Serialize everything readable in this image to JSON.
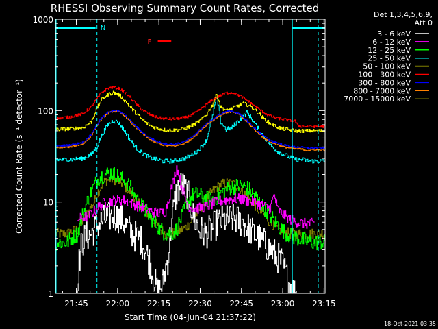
{
  "chart_data": {
    "type": "line",
    "title": "RHESSI Observing Summary Count Rates, Corrected",
    "ylabel": "Corrected Count Rate (s⁻¹ detector⁻¹)",
    "xlabel": "Start Time (04-Jun-04 21:37:22)",
    "x_unit": "minutes after 21:37:22",
    "xlim": [
      0,
      98
    ],
    "ylim": [
      1,
      1000
    ],
    "yscale": "log",
    "x_ticks": [
      {
        "t": 7.6,
        "label": "21:45"
      },
      {
        "t": 22.6,
        "label": "22:00"
      },
      {
        "t": 37.6,
        "label": "22:15"
      },
      {
        "t": 52.6,
        "label": "22:30"
      },
      {
        "t": 67.6,
        "label": "22:45"
      },
      {
        "t": 82.6,
        "label": "23:00"
      },
      {
        "t": 97.6,
        "label": "23:15"
      }
    ],
    "y_ticks": [
      {
        "v": 1,
        "label": "1"
      },
      {
        "v": 10,
        "label": "10"
      },
      {
        "v": 100,
        "label": "100"
      },
      {
        "v": 1000,
        "label": "1000"
      }
    ],
    "detector_info": [
      "Det 1,3,4,5,6,9,",
      "Att 0"
    ],
    "annotations": {
      "night_label": "N",
      "night_intervals": [
        [
          0,
          15.1
        ],
        [
          86.1,
          98
        ]
      ],
      "flag_label": "F",
      "flag_interval": [
        36.7,
        41.6
      ],
      "flag_level": 800
    },
    "series": [
      {
        "name": "3 - 6 keV",
        "color": "#ffffff",
        "x": [
          0,
          7.5,
          8,
          9.5,
          11,
          13,
          15,
          17,
          19,
          21,
          23,
          25,
          27,
          29,
          31,
          33,
          34.5,
          35.5,
          37,
          39,
          41,
          42.5,
          44,
          46,
          48,
          50,
          52,
          54,
          56,
          58,
          60,
          62,
          64,
          66,
          68,
          70,
          72,
          74,
          76,
          78,
          80,
          82,
          84,
          85.5,
          87,
          88
        ],
        "values": [
          0,
          0,
          1.5,
          3.5,
          4.2,
          4.5,
          5.5,
          6.2,
          6.8,
          7.0,
          6.8,
          5.8,
          4.8,
          4.2,
          3.8,
          2.8,
          2.0,
          1.5,
          1.0,
          1.3,
          2.5,
          7.0,
          13,
          15.5,
          12,
          7.0,
          5.0,
          4.5,
          4.8,
          5.5,
          6.2,
          6.3,
          6.5,
          6.3,
          6.0,
          5.2,
          4.5,
          4.0,
          3.5,
          3.0,
          2.6,
          2.2,
          1.5,
          1.2,
          1.0,
          1.0
        ]
      },
      {
        "name": "6 - 12 keV",
        "color": "#ff00ff",
        "x": [
          8,
          12,
          14,
          16,
          18,
          20,
          22,
          24,
          26,
          28,
          30,
          32,
          34,
          36,
          38,
          40,
          41.5,
          43,
          44,
          45.5,
          47,
          48.5,
          50,
          52,
          54,
          56,
          58,
          60,
          62,
          64,
          66,
          68,
          70,
          72,
          74,
          76,
          78,
          79.5,
          80.5,
          82,
          84,
          86,
          88,
          90,
          92,
          94
        ],
        "values": [
          6.5,
          7.0,
          8.0,
          9.0,
          9.8,
          10.2,
          10.5,
          10.5,
          10.2,
          9.5,
          9.0,
          8.5,
          8.0,
          7.7,
          7.5,
          8.0,
          12,
          18,
          24,
          16,
          11,
          9.0,
          8.5,
          8.5,
          8.8,
          9.2,
          9.8,
          10.3,
          10.5,
          10.8,
          10.8,
          10.6,
          10.3,
          10.0,
          9.5,
          9.0,
          8.5,
          12,
          8.5,
          7.5,
          6.8,
          6.3,
          6.0,
          5.8,
          5.8,
          5.8
        ]
      },
      {
        "name": "12 - 25 keV",
        "color": "#00ff00",
        "x": [
          0,
          4,
          8,
          11,
          14,
          16,
          18,
          20,
          22,
          24,
          26,
          28,
          30,
          32,
          34,
          36,
          38,
          40,
          42,
          44,
          46,
          48,
          50,
          52,
          54,
          56,
          58,
          60,
          62,
          64,
          66,
          68,
          70,
          72,
          74,
          76,
          78,
          80,
          82,
          84,
          86,
          88,
          90,
          92,
          94,
          96,
          98
        ],
        "values": [
          3.6,
          3.6,
          4.5,
          9.0,
          15,
          19,
          20,
          21,
          20,
          18,
          16,
          13,
          10,
          8.5,
          7.0,
          6.0,
          5.0,
          4.5,
          4.5,
          5.0,
          7.0,
          10,
          12,
          12,
          11,
          10.5,
          11,
          12.5,
          13.5,
          14.5,
          15,
          15,
          14,
          12,
          10,
          8.5,
          7.0,
          6.0,
          5.0,
          4.5,
          4.2,
          4.0,
          3.8,
          3.7,
          3.6,
          3.6,
          3.6
        ]
      },
      {
        "name": "25 - 50 keV",
        "color": "#00ffff",
        "x": [
          0,
          5,
          10,
          13,
          15,
          17,
          19,
          21,
          23,
          25,
          27,
          29,
          31,
          33,
          35,
          37,
          39,
          41,
          43,
          45,
          47,
          49,
          51,
          53,
          55,
          57,
          58.5,
          60,
          62,
          64,
          66,
          68,
          69.5,
          70.5,
          72,
          74,
          76,
          78,
          80,
          82,
          84,
          86,
          88,
          90,
          92,
          94,
          96,
          98
        ],
        "values": [
          29,
          29,
          30,
          33,
          40,
          55,
          70,
          78,
          73,
          60,
          48,
          40,
          35,
          32,
          30,
          29,
          28,
          28,
          28,
          29,
          30,
          32,
          35,
          40,
          48,
          85,
          140,
          75,
          62,
          65,
          75,
          85,
          95,
          88,
          75,
          60,
          50,
          42,
          37,
          34,
          32,
          30,
          29,
          29,
          28,
          28,
          28,
          28
        ]
      },
      {
        "name": "50 - 100 keV",
        "color": "#ffff00",
        "x": [
          0,
          5,
          10,
          13,
          15,
          17,
          19,
          21,
          23,
          25,
          27,
          29,
          31,
          33,
          35,
          37,
          39,
          41,
          43,
          45,
          47,
          49,
          51,
          53,
          55,
          57,
          58.5,
          60,
          62,
          64,
          66,
          68,
          70,
          72,
          74,
          76,
          78,
          80,
          82,
          84,
          86,
          88,
          90,
          92,
          94,
          96,
          98
        ],
        "values": [
          62,
          63,
          65,
          75,
          105,
          135,
          150,
          158,
          150,
          130,
          110,
          95,
          82,
          73,
          67,
          64,
          62,
          61,
          61,
          62,
          64,
          67,
          72,
          80,
          92,
          115,
          150,
          110,
          100,
          105,
          112,
          120,
          115,
          105,
          92,
          80,
          72,
          67,
          64,
          62,
          61,
          60,
          60,
          60,
          60,
          60,
          60
        ]
      },
      {
        "name": "100 - 300 keV",
        "color": "#ff0000",
        "x": [
          0,
          5,
          10,
          13,
          15,
          17,
          19,
          21,
          23,
          25,
          27,
          29,
          31,
          33,
          35,
          37,
          39,
          41,
          43,
          45,
          47,
          49,
          51,
          53,
          55,
          57,
          59,
          61,
          63,
          65,
          67,
          69,
          71,
          73,
          75,
          77,
          79,
          81,
          83,
          85,
          87,
          88,
          90,
          92,
          94,
          96,
          98
        ],
        "values": [
          82,
          85,
          92,
          110,
          135,
          160,
          175,
          180,
          175,
          160,
          140,
          120,
          105,
          95,
          88,
          84,
          82,
          81,
          81,
          82,
          84,
          88,
          95,
          105,
          118,
          130,
          142,
          152,
          158,
          155,
          145,
          132,
          120,
          108,
          98,
          90,
          85,
          82,
          80,
          78,
          77,
          68,
          67,
          67,
          67,
          67,
          67
        ]
      },
      {
        "name": "300 - 800 keV",
        "color": "#0000ff",
        "x": [
          0,
          5,
          10,
          13,
          15,
          17,
          19,
          21,
          23,
          25,
          27,
          29,
          31,
          33,
          35,
          37,
          39,
          41,
          43,
          45,
          47,
          49,
          51,
          53,
          55,
          57,
          59,
          61,
          63,
          65,
          67,
          69,
          71,
          73,
          75,
          77,
          79,
          81,
          83,
          85,
          87,
          89,
          91,
          93,
          95,
          97,
          98
        ],
        "values": [
          41,
          42,
          45,
          55,
          70,
          85,
          95,
          101,
          98,
          90,
          78,
          68,
          60,
          53,
          49,
          46,
          44,
          43,
          43,
          44,
          46,
          50,
          56,
          64,
          72,
          80,
          88,
          95,
          99,
          97,
          90,
          80,
          70,
          61,
          54,
          49,
          46,
          44,
          42,
          41,
          40,
          40,
          39,
          39,
          39,
          39,
          39
        ]
      },
      {
        "name": "800 - 7000 keV",
        "color": "#ff8000",
        "x": [
          0,
          5,
          10,
          13,
          15,
          17,
          19,
          21,
          23,
          25,
          27,
          29,
          31,
          33,
          35,
          37,
          39,
          41,
          43,
          45,
          47,
          49,
          51,
          53,
          55,
          57,
          59,
          61,
          63,
          65,
          67,
          69,
          71,
          73,
          75,
          77,
          79,
          81,
          83,
          85,
          87,
          89,
          91,
          93,
          95,
          97,
          98
        ],
        "values": [
          39,
          40,
          43,
          53,
          68,
          83,
          93,
          99,
          96,
          88,
          76,
          66,
          58,
          51,
          47,
          44,
          42,
          41,
          41,
          42,
          44,
          48,
          54,
          62,
          70,
          78,
          86,
          93,
          97,
          95,
          88,
          78,
          68,
          59,
          52,
          47,
          44,
          42,
          40,
          39,
          38,
          38,
          37,
          37,
          37,
          37,
          37
        ]
      },
      {
        "name": "7000 - 15000 keV",
        "color": "#808000",
        "x": [
          0,
          4,
          8,
          11,
          14,
          16,
          18,
          20,
          22,
          24,
          26,
          28,
          30,
          32,
          34,
          36,
          38,
          40,
          42,
          44,
          46,
          48,
          50,
          52,
          54,
          56,
          58,
          60,
          62,
          64,
          66,
          68,
          70,
          72,
          74,
          76,
          78,
          80,
          82,
          84,
          86,
          88,
          90,
          92,
          94,
          96,
          98
        ],
        "values": [
          4.5,
          4.5,
          5.0,
          7.0,
          10,
          14,
          17,
          18,
          17.5,
          16,
          14,
          12,
          10,
          8.5,
          7.0,
          6.0,
          5.0,
          4.5,
          4.5,
          4.7,
          5.0,
          5.5,
          6.5,
          8.0,
          10,
          12,
          14,
          15.5,
          16,
          16,
          15,
          13,
          11,
          9.5,
          8.0,
          7.0,
          6.0,
          5.2,
          4.8,
          4.6,
          4.5,
          4.5,
          4.5,
          4.5,
          4.5,
          4.5,
          4.5
        ]
      }
    ]
  },
  "footer_timestamp": "18-Oct-2021 03:35"
}
